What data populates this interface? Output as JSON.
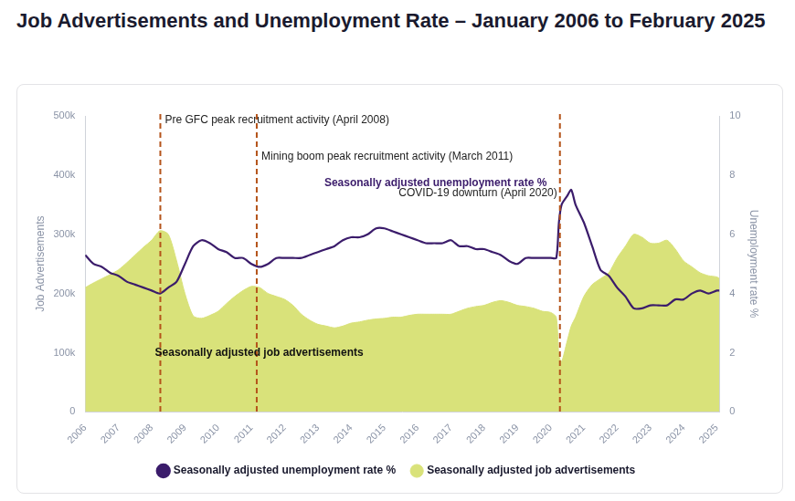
{
  "chart_data": {
    "type": "line",
    "title": "Job Advertisements and Unemployment Rate – January 2006 to February 2025",
    "y_label": "Job Advertisements",
    "y2_label": "Unemployment rate %",
    "x": [
      2006,
      2006.25,
      2006.5,
      2006.75,
      2007,
      2007.25,
      2007.5,
      2007.75,
      2008,
      2008.25,
      2008.5,
      2008.75,
      2009,
      2009.25,
      2009.5,
      2009.75,
      2010,
      2010.25,
      2010.5,
      2010.75,
      2011,
      2011.25,
      2011.5,
      2011.75,
      2012,
      2012.25,
      2012.5,
      2012.75,
      2013,
      2013.25,
      2013.5,
      2013.75,
      2014,
      2014.25,
      2014.5,
      2014.75,
      2015,
      2015.25,
      2015.5,
      2015.75,
      2016,
      2016.25,
      2016.5,
      2016.75,
      2017,
      2017.25,
      2017.5,
      2017.75,
      2018,
      2018.25,
      2018.5,
      2018.75,
      2019,
      2019.25,
      2019.5,
      2019.75,
      2020,
      2020.17,
      2020.25,
      2020.33,
      2020.5,
      2020.62,
      2020.75,
      2021,
      2021.25,
      2021.5,
      2021.75,
      2022,
      2022.25,
      2022.5,
      2022.75,
      2023,
      2023.25,
      2023.5,
      2023.75,
      2024,
      2024.25,
      2024.5,
      2024.75,
      2025,
      2025.08
    ],
    "series": [
      {
        "name": "Seasonally adjusted unemployment rate %",
        "color": "#3b1c6b",
        "type": "line",
        "axis": "y2",
        "values": [
          5.3,
          5.0,
          4.9,
          4.7,
          4.6,
          4.4,
          4.3,
          4.2,
          4.1,
          4.0,
          4.2,
          4.4,
          5.0,
          5.6,
          5.8,
          5.7,
          5.5,
          5.4,
          5.2,
          5.2,
          5.0,
          4.9,
          5.0,
          5.2,
          5.2,
          5.2,
          5.2,
          5.3,
          5.4,
          5.5,
          5.6,
          5.8,
          5.9,
          5.9,
          6.0,
          6.2,
          6.2,
          6.1,
          6.0,
          5.9,
          5.8,
          5.7,
          5.7,
          5.7,
          5.8,
          5.6,
          5.6,
          5.5,
          5.5,
          5.4,
          5.3,
          5.1,
          5.0,
          5.2,
          5.2,
          5.2,
          5.2,
          5.2,
          6.4,
          7.0,
          7.3,
          7.5,
          7.0,
          6.4,
          5.6,
          4.8,
          4.6,
          4.2,
          3.9,
          3.5,
          3.5,
          3.6,
          3.6,
          3.6,
          3.8,
          3.8,
          4.0,
          4.1,
          4.0,
          4.1,
          4.1
        ]
      },
      {
        "name": "Seasonally adjusted job advertisements",
        "color": "#d9e27a",
        "type": "area",
        "values": [
          210000,
          218000,
          225000,
          232000,
          240000,
          252000,
          265000,
          278000,
          290000,
          306000,
          300000,
          255000,
          200000,
          162000,
          158000,
          163000,
          170000,
          183000,
          195000,
          205000,
          212000,
          210000,
          200000,
          195000,
          190000,
          180000,
          165000,
          155000,
          148000,
          145000,
          142000,
          145000,
          150000,
          152000,
          155000,
          157000,
          158000,
          160000,
          160000,
          163000,
          165000,
          165000,
          165000,
          165000,
          165000,
          170000,
          175000,
          178000,
          180000,
          185000,
          188000,
          185000,
          180000,
          178000,
          175000,
          170000,
          168000,
          160000,
          95000,
          85000,
          120000,
          145000,
          160000,
          195000,
          215000,
          225000,
          235000,
          260000,
          280000,
          300000,
          295000,
          285000,
          285000,
          290000,
          275000,
          255000,
          245000,
          235000,
          230000,
          228000,
          225000
        ]
      }
    ],
    "xlim": [
      2006,
      2025.08
    ],
    "xticks": [
      2006,
      2007,
      2008,
      2009,
      2010,
      2011,
      2012,
      2013,
      2014,
      2015,
      2016,
      2017,
      2018,
      2019,
      2020,
      2021,
      2022,
      2023,
      2024,
      2025
    ],
    "ylim": [
      0,
      500000
    ],
    "yticks": [
      0,
      {
        "value": 100000,
        "label": "100k"
      },
      {
        "value": 200000,
        "label": "200k"
      },
      {
        "value": 300000,
        "label": "300k"
      },
      {
        "value": 400000,
        "label": "400k"
      },
      {
        "value": 500000,
        "label": "500k"
      }
    ],
    "y2lim": [
      0,
      10
    ],
    "y2ticks": [
      0,
      2,
      4,
      6,
      8,
      10
    ],
    "annotations": [
      {
        "x": 2008.26,
        "label": "Pre GFC peak recruitment activity (April 2008)"
      },
      {
        "x": 2011.16,
        "label": "Mining boom peak recruitment activity (March 2011)"
      },
      {
        "x": 2020.28,
        "label": "COVID-19 downturn (April 2020)"
      }
    ],
    "grid": false,
    "legend": "bottom"
  }
}
